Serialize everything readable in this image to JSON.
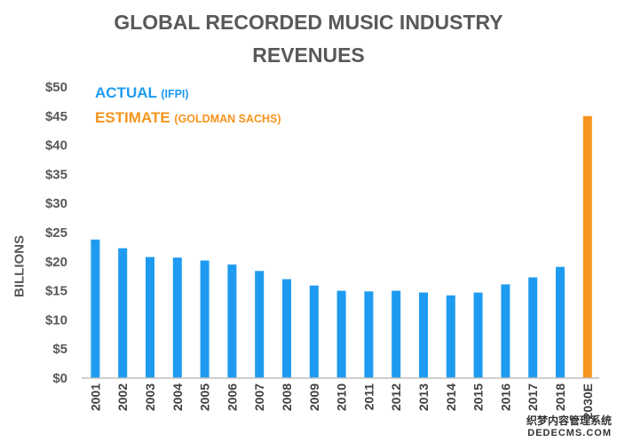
{
  "chart_data": {
    "type": "bar",
    "title_line1": "GLOBAL RECORDED MUSIC INDUSTRY",
    "title_line2": "REVENUES",
    "ylabel": "BILLIONS",
    "ylim": [
      0,
      50
    ],
    "yticks": [
      {
        "value": 0,
        "label": "$0"
      },
      {
        "value": 5,
        "label": "$5"
      },
      {
        "value": 10,
        "label": "$10"
      },
      {
        "value": 15,
        "label": "$15"
      },
      {
        "value": 20,
        "label": "$20"
      },
      {
        "value": 25,
        "label": "$25"
      },
      {
        "value": 30,
        "label": "$30"
      },
      {
        "value": 35,
        "label": "$35"
      },
      {
        "value": 40,
        "label": "$40"
      },
      {
        "value": 45,
        "label": "$45"
      },
      {
        "value": 50,
        "label": "$50"
      }
    ],
    "categories": [
      "2001",
      "2002",
      "2003",
      "2004",
      "2005",
      "2006",
      "2007",
      "2008",
      "2009",
      "2010",
      "2011",
      "2012",
      "2013",
      "2014",
      "2015",
      "2016",
      "2017",
      "2018",
      "2030E"
    ],
    "values": [
      23.8,
      22.3,
      20.8,
      20.7,
      20.2,
      19.5,
      18.4,
      17.0,
      15.9,
      15.0,
      14.9,
      15.0,
      14.7,
      14.2,
      14.7,
      16.1,
      17.3,
      19.1,
      45.0
    ],
    "series_type": [
      "actual",
      "actual",
      "actual",
      "actual",
      "actual",
      "actual",
      "actual",
      "actual",
      "actual",
      "actual",
      "actual",
      "actual",
      "actual",
      "actual",
      "actual",
      "actual",
      "actual",
      "actual",
      "estimate"
    ],
    "legend": {
      "actual": {
        "label": "ACTUAL",
        "source": "(IFPI)",
        "color": "#1E9BF0"
      },
      "estimate": {
        "label": "ESTIMATE",
        "source": "(GOLDMAN SACHS)",
        "color": "#F7941D"
      }
    },
    "grid": false,
    "legend_placement": "top-left"
  },
  "watermark": {
    "line1": "织梦内容管理系统",
    "line2": "DEDECMS.COM"
  }
}
